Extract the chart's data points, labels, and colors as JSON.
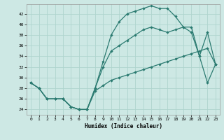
{
  "xlabel": "Humidex (Indice chaleur)",
  "bg_color": "#cde8e4",
  "line_color": "#2a7a70",
  "grid_color": "#afd4ce",
  "xlim": [
    -0.5,
    23.5
  ],
  "ylim": [
    23.0,
    43.8
  ],
  "yticks": [
    24,
    26,
    28,
    30,
    32,
    34,
    36,
    38,
    40,
    42
  ],
  "xticks": [
    0,
    1,
    2,
    3,
    4,
    5,
    6,
    7,
    8,
    9,
    10,
    11,
    12,
    13,
    14,
    15,
    16,
    17,
    18,
    19,
    20,
    21,
    22,
    23
  ],
  "curve_a_x": [
    0,
    1,
    2,
    3,
    4,
    5,
    6,
    7,
    8,
    9,
    10,
    11,
    12,
    13,
    14,
    15,
    16,
    17,
    18,
    19,
    20,
    21,
    22,
    23
  ],
  "curve_a_y": [
    29,
    28,
    26,
    26,
    26,
    24.5,
    24,
    24,
    28,
    33,
    38,
    40.5,
    42,
    42.5,
    43,
    43.5,
    43,
    43,
    41.5,
    39.5,
    38.5,
    34,
    29,
    32.5
  ],
  "curve_b_x": [
    0,
    1,
    2,
    3,
    4,
    5,
    6,
    7,
    8,
    9,
    10,
    11,
    12,
    13,
    14,
    15,
    16,
    17,
    18,
    19,
    20,
    21,
    22,
    23
  ],
  "curve_b_y": [
    29,
    28,
    26,
    26,
    26,
    24.5,
    24,
    24,
    28,
    32,
    35,
    36,
    37,
    38,
    39,
    39.5,
    39,
    38.5,
    39,
    39.5,
    39.5,
    34,
    38.5,
    32.5
  ],
  "curve_c_x": [
    0,
    1,
    2,
    3,
    4,
    5,
    6,
    7,
    8,
    9,
    10,
    11,
    12,
    13,
    14,
    15,
    16,
    17,
    18,
    19,
    20,
    21,
    22,
    23
  ],
  "curve_c_y": [
    29,
    28,
    26,
    26,
    26,
    24.5,
    24,
    24,
    27.5,
    28.5,
    29.5,
    30,
    30.5,
    31,
    31.5,
    32,
    32.5,
    33,
    33.5,
    34,
    34.5,
    35,
    35.5,
    32.5
  ]
}
